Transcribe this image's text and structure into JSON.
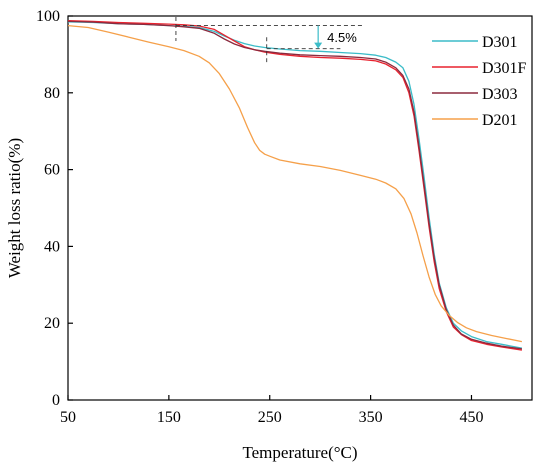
{
  "chart_data": {
    "type": "line",
    "xlabel": "Temperature(°C)",
    "ylabel": "Weight loss ratio(%)",
    "xlim": [
      50,
      510
    ],
    "ylim": [
      0,
      100
    ],
    "xticks": [
      50,
      150,
      250,
      350,
      450
    ],
    "yticks": [
      0,
      20,
      40,
      60,
      80,
      100
    ],
    "grid": false,
    "legend_position": "top-right",
    "annotation": {
      "text": "4.5%",
      "upper_y": 97.5,
      "lower_y": 91.5,
      "arrow_x": 298,
      "ref_x1": 157,
      "ref_x2": 247
    },
    "series": [
      {
        "name": "D301",
        "color": "#3bbcc8",
        "x": [
          50,
          75,
          100,
          125,
          150,
          165,
          180,
          195,
          205,
          215,
          225,
          235,
          245,
          260,
          280,
          300,
          320,
          340,
          355,
          365,
          375,
          382,
          388,
          393,
          398,
          403,
          408,
          413,
          418,
          425,
          432,
          440,
          450,
          465,
          480,
          500
        ],
        "y": [
          98.5,
          98.3,
          98.0,
          97.8,
          97.5,
          97.3,
          97.0,
          96.0,
          94.8,
          93.7,
          92.8,
          92.2,
          91.8,
          91.4,
          91.0,
          90.8,
          90.5,
          90.2,
          89.8,
          89.2,
          88.0,
          86.5,
          83.0,
          77.0,
          68.0,
          58.0,
          47.5,
          38.0,
          30.5,
          24.0,
          20.0,
          18.0,
          16.5,
          15.2,
          14.5,
          13.5
        ]
      },
      {
        "name": "D301F",
        "color": "#e8222e",
        "x": [
          50,
          75,
          100,
          125,
          150,
          165,
          180,
          195,
          205,
          215,
          225,
          235,
          245,
          260,
          280,
          300,
          320,
          340,
          355,
          365,
          375,
          382,
          388,
          393,
          398,
          403,
          408,
          413,
          418,
          425,
          432,
          440,
          450,
          465,
          480,
          500
        ],
        "y": [
          98.8,
          98.6,
          98.3,
          98.1,
          97.9,
          97.7,
          97.4,
          96.5,
          95.0,
          93.5,
          92.0,
          91.2,
          90.6,
          90.0,
          89.5,
          89.2,
          89.0,
          88.7,
          88.3,
          87.5,
          86.0,
          84.0,
          80.0,
          74.0,
          65.0,
          55.0,
          45.0,
          36.0,
          29.0,
          23.0,
          19.0,
          17.0,
          15.5,
          14.5,
          13.8,
          13.0
        ]
      },
      {
        "name": "D303",
        "color": "#8b2a3e",
        "x": [
          50,
          75,
          100,
          125,
          150,
          165,
          180,
          195,
          205,
          215,
          225,
          235,
          245,
          260,
          280,
          300,
          320,
          340,
          355,
          365,
          375,
          382,
          388,
          393,
          398,
          403,
          408,
          413,
          418,
          425,
          432,
          440,
          450,
          465,
          480,
          500
        ],
        "y": [
          98.6,
          98.4,
          98.0,
          97.8,
          97.5,
          97.2,
          96.8,
          95.5,
          94.0,
          92.7,
          91.8,
          91.2,
          90.8,
          90.3,
          89.9,
          89.7,
          89.5,
          89.2,
          88.8,
          88.0,
          86.5,
          84.5,
          81.0,
          75.0,
          66.0,
          56.0,
          46.0,
          37.0,
          30.0,
          23.5,
          19.5,
          17.2,
          15.8,
          14.8,
          14.0,
          13.3
        ]
      },
      {
        "name": "D201",
        "color": "#f5a04a",
        "x": [
          50,
          70,
          90,
          110,
          130,
          150,
          165,
          180,
          190,
          200,
          210,
          220,
          228,
          235,
          240,
          245,
          250,
          260,
          280,
          300,
          320,
          340,
          355,
          365,
          375,
          383,
          390,
          396,
          402,
          408,
          414,
          420,
          428,
          436,
          445,
          455,
          470,
          485,
          500
        ],
        "y": [
          97.5,
          97.0,
          95.8,
          94.5,
          93.2,
          92.0,
          91.0,
          89.5,
          87.8,
          85.0,
          81.0,
          76.0,
          71.0,
          67.0,
          65.0,
          64.0,
          63.5,
          62.5,
          61.5,
          60.8,
          59.8,
          58.5,
          57.5,
          56.5,
          55.0,
          52.5,
          48.5,
          43.5,
          37.5,
          32.0,
          27.5,
          24.5,
          22.0,
          20.2,
          18.8,
          17.8,
          16.8,
          16.0,
          15.2
        ]
      }
    ]
  }
}
